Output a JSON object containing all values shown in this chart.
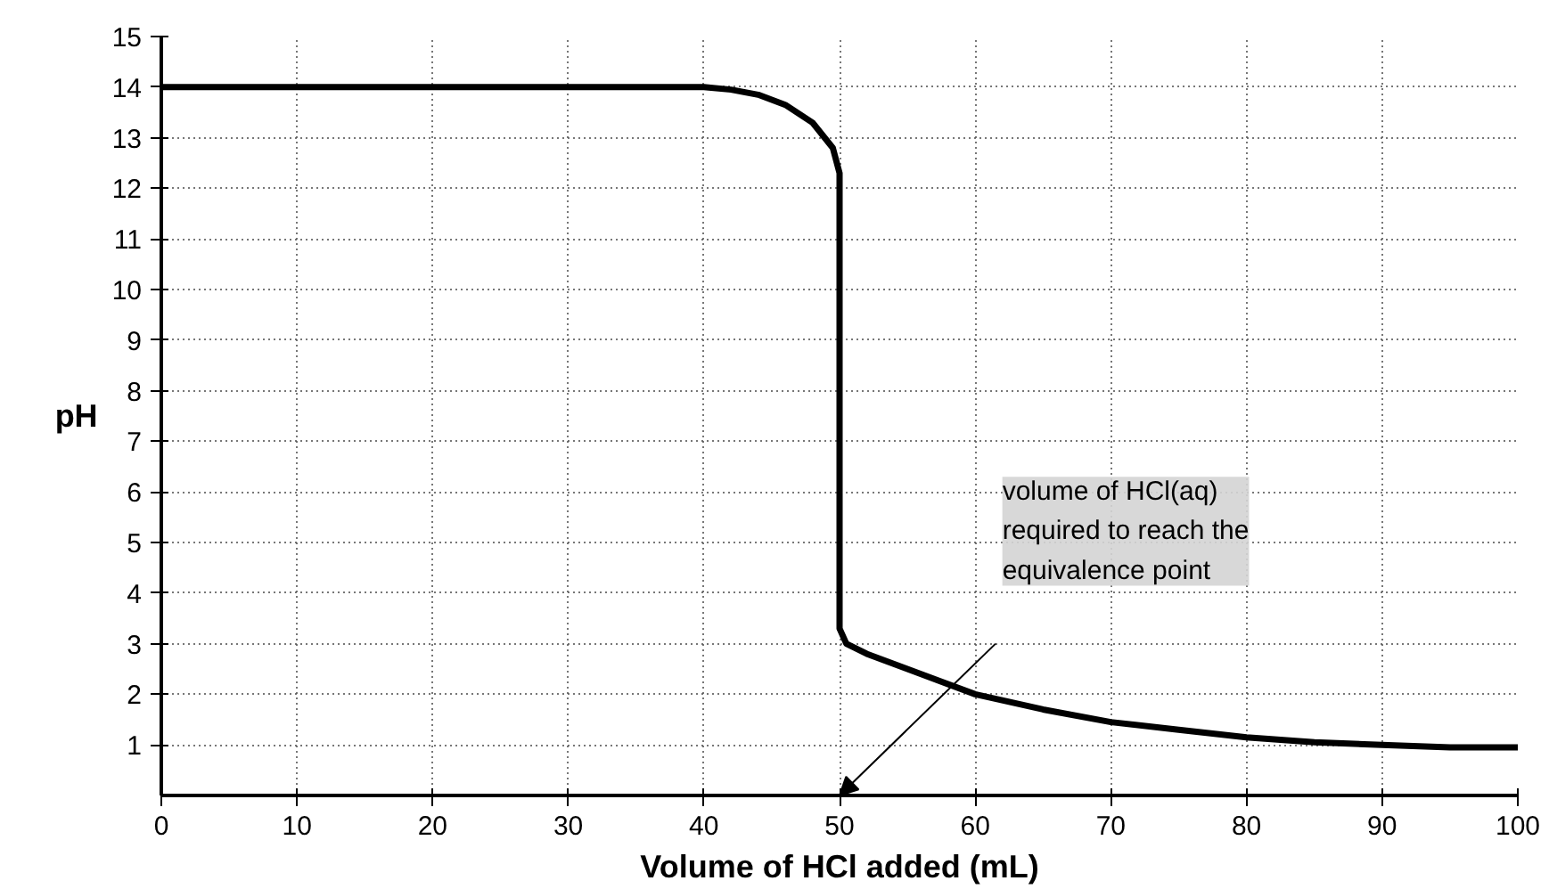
{
  "chart_data": {
    "type": "line",
    "xlabel": "Volume of HCl added (mL)",
    "ylabel": "pH",
    "x": [
      0,
      10,
      20,
      30,
      40,
      42,
      44,
      46,
      48,
      49.5,
      50,
      50,
      50.5,
      52,
      55,
      60,
      65,
      70,
      75,
      80,
      85,
      90,
      95,
      100
    ],
    "series": [
      {
        "color": "#000000",
        "values": [
          14,
          14,
          14,
          14,
          14,
          13.95,
          13.85,
          13.65,
          13.3,
          12.8,
          12.3,
          3.3,
          3.0,
          2.8,
          2.5,
          2.0,
          1.7,
          1.45,
          1.3,
          1.15,
          1.05,
          1.0,
          0.95,
          0.95
        ]
      }
    ],
    "xlim": [
      0,
      100
    ],
    "ylim": [
      0,
      15
    ],
    "xticks": [
      0,
      10,
      20,
      30,
      40,
      50,
      60,
      70,
      80,
      90,
      100
    ],
    "yticks": [
      1,
      2,
      3,
      4,
      5,
      6,
      7,
      8,
      9,
      10,
      11,
      12,
      13,
      14,
      15
    ],
    "grid": true,
    "marker": "none",
    "line_style": "solid",
    "annotations": [
      "volume of HCl(aq)\nrequired to reach the\nequivalence point"
    ]
  }
}
